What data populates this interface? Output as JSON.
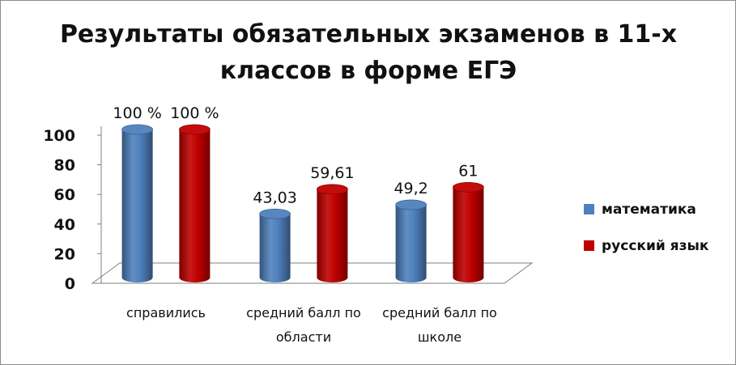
{
  "chart_data": {
    "type": "bar",
    "style": "3d-cylinder",
    "title_lines": [
      "Результаты обязательных экзаменов в 11-х",
      "классов в форме ЕГЭ"
    ],
    "categories": [
      [
        "справились"
      ],
      [
        "средний балл по",
        "области"
      ],
      [
        "средний балл по",
        "школе"
      ]
    ],
    "series": [
      {
        "name": "математика",
        "color": "#4F81BD",
        "values": [
          100,
          43.03,
          49.2
        ],
        "labels": [
          "100 %",
          "43,03",
          "49,2"
        ]
      },
      {
        "name": "русский язык",
        "color": "#C00000",
        "values": [
          100,
          59.61,
          61
        ],
        "labels": [
          "100 %",
          "59,61",
          "61"
        ]
      }
    ],
    "yticks": [
      0,
      20,
      40,
      60,
      80,
      100
    ],
    "ylim": [
      0,
      100
    ],
    "grid": false,
    "legend_position": "right"
  }
}
